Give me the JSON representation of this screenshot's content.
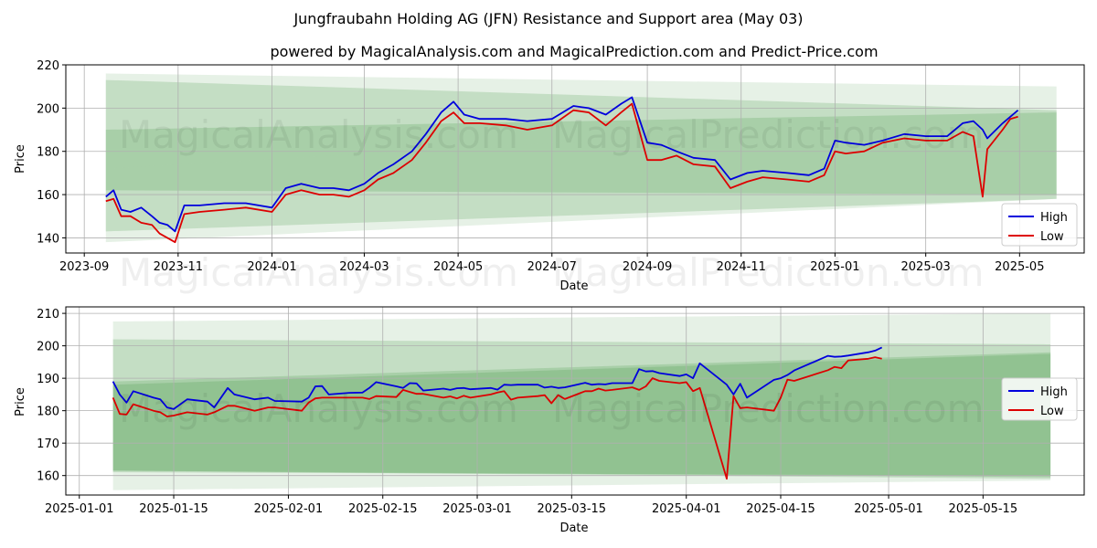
{
  "title": "Jungfraubahn Holding AG (JFN) Resistance and Support area (May 03)",
  "subtitle": "powered by MagicalAnalysis.com and MagicalPrediction.com and Predict-Price.com",
  "watermarks": [
    "MagicalAnalysis.com",
    "MagicalPrediction.com"
  ],
  "colors": {
    "high": "#0000dd",
    "low": "#dd0000",
    "band": "#2e8b2e",
    "grid": "#b0b0b0"
  },
  "chart_data": [
    {
      "type": "line",
      "xlabel": "Date",
      "ylabel": "Price",
      "x_tick_labels": [
        "2023-09",
        "2023-11",
        "2024-01",
        "2024-03",
        "2024-05",
        "2024-07",
        "2024-09",
        "2024-11",
        "2025-01",
        "2025-03",
        "2025-05"
      ],
      "x_ticks": [
        "2023-09-01",
        "2023-11-01",
        "2024-01-01",
        "2024-03-01",
        "2024-05-01",
        "2024-07-01",
        "2024-09-01",
        "2024-11-01",
        "2025-01-01",
        "2025-03-01",
        "2025-05-01"
      ],
      "xlim": [
        "2023-08-20",
        "2025-06-12"
      ],
      "ylim": [
        133,
        220
      ],
      "y_ticks": [
        140,
        160,
        180,
        200,
        220
      ],
      "grid": true,
      "legend_position": "lower-right",
      "series": [
        {
          "name": "High",
          "color": "#0000dd",
          "x": [
            "2023-09-15",
            "2023-09-20",
            "2023-09-25",
            "2023-10-01",
            "2023-10-08",
            "2023-10-15",
            "2023-10-20",
            "2023-10-25",
            "2023-10-30",
            "2023-11-05",
            "2023-11-15",
            "2023-12-01",
            "2023-12-15",
            "2024-01-01",
            "2024-01-10",
            "2024-01-20",
            "2024-02-01",
            "2024-02-10",
            "2024-02-20",
            "2024-03-01",
            "2024-03-10",
            "2024-03-20",
            "2024-04-01",
            "2024-04-10",
            "2024-04-20",
            "2024-04-28",
            "2024-05-05",
            "2024-05-15",
            "2024-06-01",
            "2024-06-15",
            "2024-07-01",
            "2024-07-15",
            "2024-07-25",
            "2024-08-05",
            "2024-08-15",
            "2024-08-22",
            "2024-09-01",
            "2024-09-10",
            "2024-09-20",
            "2024-10-01",
            "2024-10-15",
            "2024-10-25",
            "2024-11-05",
            "2024-11-15",
            "2024-12-01",
            "2024-12-15",
            "2024-12-25",
            "2025-01-01",
            "2025-01-08",
            "2025-01-20",
            "2025-02-01",
            "2025-02-15",
            "2025-03-01",
            "2025-03-15",
            "2025-03-25",
            "2025-04-01",
            "2025-04-07",
            "2025-04-10",
            "2025-04-20",
            "2025-04-25",
            "2025-04-30"
          ],
          "values": [
            159,
            162,
            153,
            152,
            154,
            150,
            147,
            146,
            143,
            155,
            155,
            156,
            156,
            154,
            163,
            165,
            163,
            163,
            162,
            165,
            170,
            174,
            180,
            188,
            198,
            203,
            197,
            195,
            195,
            194,
            195,
            201,
            200,
            197,
            202,
            205,
            184,
            183,
            180,
            177,
            176,
            167,
            170,
            171,
            170,
            169,
            172,
            185,
            184,
            183,
            185,
            188,
            187,
            187,
            193,
            194,
            190,
            186,
            193,
            196,
            199
          ]
        },
        {
          "name": "Low",
          "color": "#dd0000",
          "x": [
            "2023-09-15",
            "2023-09-20",
            "2023-09-25",
            "2023-10-01",
            "2023-10-08",
            "2023-10-15",
            "2023-10-20",
            "2023-10-25",
            "2023-10-30",
            "2023-11-05",
            "2023-11-15",
            "2023-12-01",
            "2023-12-15",
            "2024-01-01",
            "2024-01-10",
            "2024-01-20",
            "2024-02-01",
            "2024-02-10",
            "2024-02-20",
            "2024-03-01",
            "2024-03-10",
            "2024-03-20",
            "2024-04-01",
            "2024-04-10",
            "2024-04-20",
            "2024-04-28",
            "2024-05-05",
            "2024-05-15",
            "2024-06-01",
            "2024-06-15",
            "2024-07-01",
            "2024-07-15",
            "2024-07-25",
            "2024-08-05",
            "2024-08-15",
            "2024-08-22",
            "2024-09-01",
            "2024-09-10",
            "2024-09-20",
            "2024-10-01",
            "2024-10-15",
            "2024-10-25",
            "2024-11-05",
            "2024-11-15",
            "2024-12-01",
            "2024-12-15",
            "2024-12-25",
            "2025-01-01",
            "2025-01-08",
            "2025-01-20",
            "2025-02-01",
            "2025-02-15",
            "2025-03-01",
            "2025-03-15",
            "2025-03-25",
            "2025-04-01",
            "2025-04-07",
            "2025-04-10",
            "2025-04-20",
            "2025-04-25",
            "2025-04-30"
          ],
          "values": [
            157,
            158,
            150,
            150,
            147,
            146,
            142,
            140,
            138,
            151,
            152,
            153,
            154,
            152,
            160,
            162,
            160,
            160,
            159,
            162,
            167,
            170,
            176,
            184,
            194,
            198,
            193,
            193,
            192,
            190,
            192,
            199,
            198,
            192,
            198,
            202,
            176,
            176,
            178,
            174,
            173,
            163,
            166,
            168,
            167,
            166,
            169,
            180,
            179,
            180,
            184,
            186,
            185,
            185,
            189,
            187,
            159,
            181,
            190,
            195,
            196
          ]
        }
      ],
      "bands": [
        {
          "x": [
            "2023-09-15",
            "2025-05-25"
          ],
          "upper": [
            216,
            210
          ],
          "lower": [
            138,
            158
          ],
          "opacity": 0.12
        },
        {
          "x": [
            "2023-09-15",
            "2025-05-25"
          ],
          "upper": [
            213,
            199
          ],
          "lower": [
            172,
            197
          ],
          "opacity": 0.18
        },
        {
          "x": [
            "2023-09-15",
            "2025-05-25"
          ],
          "upper": [
            190,
            198
          ],
          "lower": [
            143,
            158
          ],
          "opacity": 0.18
        },
        {
          "x": [
            "2023-09-15",
            "2025-05-25"
          ],
          "upper": [
            172,
            197
          ],
          "lower": [
            162,
            160
          ],
          "opacity": 0.18
        }
      ]
    },
    {
      "type": "line",
      "xlabel": "Date",
      "ylabel": "Price",
      "x_tick_labels": [
        "2025-01-01",
        "2025-01-15",
        "2025-02-01",
        "2025-02-15",
        "2025-03-01",
        "2025-03-15",
        "2025-04-01",
        "2025-04-15",
        "2025-05-01",
        "2025-05-15"
      ],
      "x_ticks": [
        "2025-01-01",
        "2025-01-15",
        "2025-02-01",
        "2025-02-15",
        "2025-03-01",
        "2025-03-15",
        "2025-04-01",
        "2025-04-15",
        "2025-05-01",
        "2025-05-15"
      ],
      "xlim": [
        "2024-12-30",
        "2025-05-30"
      ],
      "ylim": [
        154,
        212
      ],
      "y_ticks": [
        160,
        170,
        180,
        190,
        200,
        210
      ],
      "grid": true,
      "legend_position": "center-right",
      "series": [
        {
          "name": "High",
          "color": "#0000dd",
          "x": [
            "2025-01-06",
            "2025-01-07",
            "2025-01-08",
            "2025-01-09",
            "2025-01-12",
            "2025-01-13",
            "2025-01-14",
            "2025-01-15",
            "2025-01-17",
            "2025-01-20",
            "2025-01-21",
            "2025-01-23",
            "2025-01-24",
            "2025-01-27",
            "2025-01-29",
            "2025-01-30",
            "2025-02-03",
            "2025-02-04",
            "2025-02-05",
            "2025-02-06",
            "2025-02-07",
            "2025-02-10",
            "2025-02-12",
            "2025-02-13",
            "2025-02-14",
            "2025-02-17",
            "2025-02-18",
            "2025-02-19",
            "2025-02-20",
            "2025-02-21",
            "2025-02-24",
            "2025-02-25",
            "2025-02-26",
            "2025-02-27",
            "2025-02-28",
            "2025-03-03",
            "2025-03-04",
            "2025-03-05",
            "2025-03-06",
            "2025-03-07",
            "2025-03-10",
            "2025-03-11",
            "2025-03-12",
            "2025-03-13",
            "2025-03-14",
            "2025-03-17",
            "2025-03-18",
            "2025-03-19",
            "2025-03-20",
            "2025-03-21",
            "2025-03-24",
            "2025-03-25",
            "2025-03-26",
            "2025-03-27",
            "2025-03-28",
            "2025-03-31",
            "2025-04-01",
            "2025-04-02",
            "2025-04-03",
            "2025-04-07",
            "2025-04-08",
            "2025-04-09",
            "2025-04-10",
            "2025-04-14",
            "2025-04-15",
            "2025-04-16",
            "2025-04-17",
            "2025-04-22",
            "2025-04-23",
            "2025-04-24",
            "2025-04-25",
            "2025-04-28",
            "2025-04-29",
            "2025-04-30"
          ],
          "values": [
            189,
            185,
            182.5,
            186,
            184,
            183.5,
            181,
            180.5,
            183.5,
            182.8,
            181,
            187,
            185,
            183.5,
            184,
            183,
            182.8,
            184,
            187.5,
            187.6,
            185,
            185.5,
            185.6,
            187,
            188.8,
            187.5,
            187,
            188.5,
            188.4,
            186.2,
            186.8,
            186.4,
            186.9,
            187,
            186.6,
            187,
            186.5,
            188,
            187.9,
            188,
            188,
            187.1,
            187.4,
            187,
            187.2,
            188.6,
            188,
            188.2,
            188.1,
            188.5,
            188.5,
            192.8,
            192.1,
            192.2,
            191.6,
            190.7,
            191.2,
            190,
            194.6,
            188,
            185,
            188.3,
            184,
            189.5,
            190,
            191,
            192.4,
            196.9,
            196.6,
            196.7,
            197,
            198,
            198.5,
            199.5
          ]
        },
        {
          "name": "Low",
          "color": "#dd0000",
          "x": [
            "2025-01-06",
            "2025-01-07",
            "2025-01-08",
            "2025-01-09",
            "2025-01-12",
            "2025-01-13",
            "2025-01-14",
            "2025-01-15",
            "2025-01-17",
            "2025-01-20",
            "2025-01-21",
            "2025-01-23",
            "2025-01-24",
            "2025-01-27",
            "2025-01-29",
            "2025-01-30",
            "2025-02-03",
            "2025-02-04",
            "2025-02-05",
            "2025-02-06",
            "2025-02-07",
            "2025-02-10",
            "2025-02-12",
            "2025-02-13",
            "2025-02-14",
            "2025-02-17",
            "2025-02-18",
            "2025-02-19",
            "2025-02-20",
            "2025-02-21",
            "2025-02-24",
            "2025-02-25",
            "2025-02-26",
            "2025-02-27",
            "2025-02-28",
            "2025-03-03",
            "2025-03-04",
            "2025-03-05",
            "2025-03-06",
            "2025-03-07",
            "2025-03-10",
            "2025-03-11",
            "2025-03-12",
            "2025-03-13",
            "2025-03-14",
            "2025-03-17",
            "2025-03-18",
            "2025-03-19",
            "2025-03-20",
            "2025-03-21",
            "2025-03-24",
            "2025-03-25",
            "2025-03-26",
            "2025-03-27",
            "2025-03-28",
            "2025-03-31",
            "2025-04-01",
            "2025-04-02",
            "2025-04-03",
            "2025-04-07",
            "2025-04-08",
            "2025-04-09",
            "2025-04-10",
            "2025-04-14",
            "2025-04-15",
            "2025-04-16",
            "2025-04-17",
            "2025-04-22",
            "2025-04-23",
            "2025-04-24",
            "2025-04-25",
            "2025-04-28",
            "2025-04-29",
            "2025-04-30"
          ],
          "values": [
            184,
            179,
            178.8,
            182,
            180,
            179.5,
            178.2,
            178.5,
            179.5,
            178.8,
            179.5,
            181.5,
            181.5,
            180,
            181,
            181,
            180,
            182.5,
            183.8,
            184,
            184,
            184,
            184,
            183.6,
            184.5,
            184.2,
            186.4,
            185.8,
            185.2,
            185.2,
            184,
            184.4,
            183.8,
            184.6,
            184,
            185,
            185.6,
            186,
            183.4,
            184,
            184.5,
            184.8,
            182.3,
            184.8,
            183.6,
            186,
            186,
            186.8,
            186.2,
            186.4,
            187.2,
            186.4,
            187.5,
            190,
            189.2,
            188.5,
            188.8,
            186,
            187,
            159,
            184.5,
            180.8,
            181,
            180,
            184,
            189.6,
            189.2,
            192.5,
            193.5,
            193.1,
            195.5,
            196,
            196.5,
            196
          ]
        }
      ],
      "bands": [
        {
          "x": [
            "2025-01-06",
            "2025-05-25"
          ],
          "upper": [
            207.5,
            210
          ],
          "lower": [
            155.5,
            158.5
          ],
          "opacity": 0.12
        },
        {
          "x": [
            "2025-01-06",
            "2025-05-25"
          ],
          "upper": [
            202,
            200.5
          ],
          "lower": [
            161.5,
            159
          ],
          "opacity": 0.18
        },
        {
          "x": [
            "2025-01-06",
            "2025-05-25"
          ],
          "upper": [
            189,
            198
          ],
          "lower": [
            161,
            160
          ],
          "opacity": 0.18
        },
        {
          "x": [
            "2025-01-06",
            "2025-05-25"
          ],
          "upper": [
            188,
            197.5
          ],
          "lower": [
            161.5,
            159.5
          ],
          "opacity": 0.18
        }
      ]
    }
  ]
}
